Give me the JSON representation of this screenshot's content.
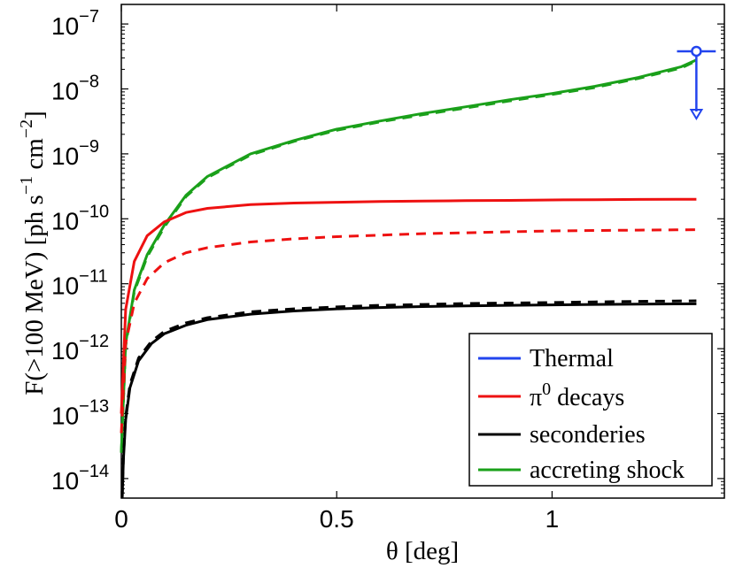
{
  "chart_data": {
    "type": "line",
    "xlabel": "θ [deg]",
    "ylabel": "F(>100 MeV) [ph s^-1 cm^-2]",
    "ylabel_parts": {
      "a": "F(>100 MeV) [ph s",
      "b": "−1",
      "c": " cm",
      "d": "−2",
      "e": "]"
    },
    "xscale": "linear",
    "yscale": "log",
    "xlim": [
      0,
      1.4
    ],
    "ylim": [
      5e-15,
      2e-07
    ],
    "x_ticks": [
      {
        "value": 0,
        "label": "0"
      },
      {
        "value": 0.5,
        "label": "0.5"
      },
      {
        "value": 1,
        "label": "1"
      }
    ],
    "y_ticks": [
      {
        "value": 1e-14,
        "base": "10",
        "exp": "−14"
      },
      {
        "value": 1e-13,
        "base": "10",
        "exp": "−13"
      },
      {
        "value": 1e-12,
        "base": "10",
        "exp": "−12"
      },
      {
        "value": 1e-11,
        "base": "10",
        "exp": "−11"
      },
      {
        "value": 1e-10,
        "base": "10",
        "exp": "−10"
      },
      {
        "value": 1e-09,
        "base": "10",
        "exp": "−9"
      },
      {
        "value": 1e-08,
        "base": "10",
        "exp": "−8"
      },
      {
        "value": 1e-07,
        "base": "10",
        "exp": "−7"
      }
    ],
    "series": [
      {
        "name": "accreting shock",
        "color": "#1aa01a",
        "style": "solid",
        "x": [
          0,
          0.01,
          0.03,
          0.06,
          0.1,
          0.15,
          0.2,
          0.3,
          0.4,
          0.5,
          0.6,
          0.7,
          0.8,
          0.9,
          1.0,
          1.1,
          1.2,
          1.3,
          1.335
        ],
        "y": [
          2.5e-14,
          1.2e-12,
          8e-12,
          2.8e-11,
          8e-11,
          2.3e-10,
          4.5e-10,
          1e-09,
          1.6e-09,
          2.4e-09,
          3.2e-09,
          4.2e-09,
          5.3e-09,
          6.8e-09,
          8.5e-09,
          1.1e-08,
          1.5e-08,
          2.2e-08,
          2.8e-08
        ]
      },
      {
        "name": "accreting shock (dashed)",
        "color": "#1aa01a",
        "style": "dashed",
        "x": [
          0,
          0.01,
          0.03,
          0.06,
          0.1,
          0.15,
          0.2,
          0.3,
          0.4,
          0.5,
          0.6,
          0.7,
          0.8,
          0.9,
          1.0,
          1.1,
          1.2,
          1.3,
          1.335
        ],
        "y": [
          2.5e-14,
          1.1e-12,
          7.5e-12,
          2.6e-11,
          7.5e-11,
          2.2e-10,
          4.3e-10,
          9.6e-10,
          1.55e-09,
          2.3e-09,
          3.1e-09,
          4e-09,
          5.1e-09,
          6.5e-09,
          8.2e-09,
          1.05e-08,
          1.45e-08,
          2.1e-08,
          2.7e-08
        ]
      },
      {
        "name": "π0 decays",
        "color": "#ee1111",
        "style": "solid",
        "x": [
          0,
          0.01,
          0.03,
          0.06,
          0.1,
          0.15,
          0.2,
          0.3,
          0.4,
          0.5,
          0.6,
          0.7,
          0.8,
          0.9,
          1.0,
          1.1,
          1.2,
          1.335
        ],
        "y": [
          1e-13,
          4e-12,
          2.2e-11,
          5.5e-11,
          9e-11,
          1.25e-10,
          1.45e-10,
          1.65e-10,
          1.75e-10,
          1.8e-10,
          1.85e-10,
          1.88e-10,
          1.9e-10,
          1.92e-10,
          1.95e-10,
          1.97e-10,
          1.99e-10,
          2e-10
        ]
      },
      {
        "name": "π0 decays (dashed)",
        "color": "#ee1111",
        "style": "dashed",
        "x": [
          0,
          0.01,
          0.03,
          0.06,
          0.1,
          0.15,
          0.2,
          0.3,
          0.4,
          0.5,
          0.6,
          0.7,
          0.8,
          0.9,
          1.0,
          1.1,
          1.2,
          1.335
        ],
        "y": [
          5e-14,
          1.2e-12,
          5e-12,
          1.2e-11,
          2.1e-11,
          3e-11,
          3.6e-11,
          4.4e-11,
          4.9e-11,
          5.3e-11,
          5.6e-11,
          5.9e-11,
          6.1e-11,
          6.3e-11,
          6.5e-11,
          6.6e-11,
          6.7e-11,
          6.8e-11
        ]
      },
      {
        "name": "seconderies",
        "color": "#000000",
        "style": "solid",
        "x": [
          0.002,
          0.005,
          0.01,
          0.02,
          0.04,
          0.07,
          0.1,
          0.15,
          0.2,
          0.3,
          0.4,
          0.5,
          0.6,
          0.7,
          0.8,
          0.9,
          1.0,
          1.1,
          1.2,
          1.335
        ],
        "y": [
          5e-15,
          2e-14,
          8e-14,
          2.5e-13,
          6.5e-13,
          1.2e-12,
          1.7e-12,
          2.3e-12,
          2.8e-12,
          3.4e-12,
          3.8e-12,
          4.1e-12,
          4.3e-12,
          4.45e-12,
          4.55e-12,
          4.65e-12,
          4.72e-12,
          4.8e-12,
          4.85e-12,
          4.9e-12
        ]
      },
      {
        "name": "seconderies (dashed)",
        "color": "#000000",
        "style": "dashed",
        "x": [
          0.002,
          0.005,
          0.01,
          0.02,
          0.04,
          0.07,
          0.1,
          0.15,
          0.2,
          0.3,
          0.4,
          0.5,
          0.6,
          0.7,
          0.8,
          0.9,
          1.0,
          1.1,
          1.2,
          1.335
        ],
        "y": [
          5e-15,
          2.2e-14,
          9e-14,
          2.8e-13,
          7.2e-13,
          1.3e-12,
          1.85e-12,
          2.5e-12,
          3e-12,
          3.7e-12,
          4.1e-12,
          4.4e-12,
          4.65e-12,
          4.8e-12,
          4.95e-12,
          5.05e-12,
          5.15e-12,
          5.25e-12,
          5.35e-12,
          5.45e-12
        ]
      }
    ],
    "thermal_upper_limit": {
      "name": "Thermal",
      "color": "#2244ee",
      "x": 1.335,
      "y": 3.8e-08,
      "x_err": 0.045,
      "arrow_to": 3.5e-09
    },
    "legend": {
      "position": "bottom-right",
      "entries": [
        {
          "label": "Thermal",
          "color": "#2244ee"
        },
        {
          "label": "π",
          "sup": "0",
          "suffix": " decays",
          "color": "#ee1111"
        },
        {
          "label": "seconderies",
          "color": "#000000"
        },
        {
          "label": "accreting shock",
          "color": "#1aa01a"
        }
      ]
    }
  }
}
